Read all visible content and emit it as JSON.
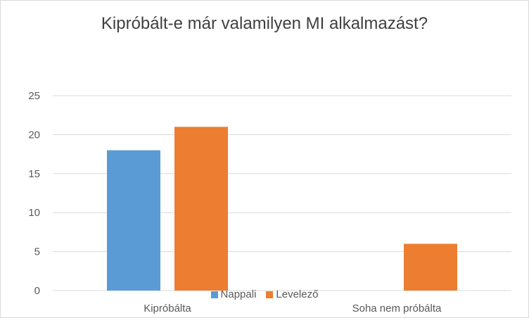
{
  "chart_data": {
    "type": "bar",
    "title": "Kipróbált-e már valamilyen MI alkalmazást?",
    "categories": [
      "Kipróbálta",
      "Soha nem próbálta"
    ],
    "series": [
      {
        "name": "Nappali",
        "values": [
          18,
          0
        ],
        "color": "#5b9bd5"
      },
      {
        "name": "Levelező",
        "values": [
          21,
          6
        ],
        "color": "#ed7d31"
      }
    ],
    "ylim": [
      0,
      25
    ],
    "yticks": [
      0,
      5,
      10,
      15,
      20,
      25
    ],
    "grid": true,
    "legend_position": "bottom"
  }
}
